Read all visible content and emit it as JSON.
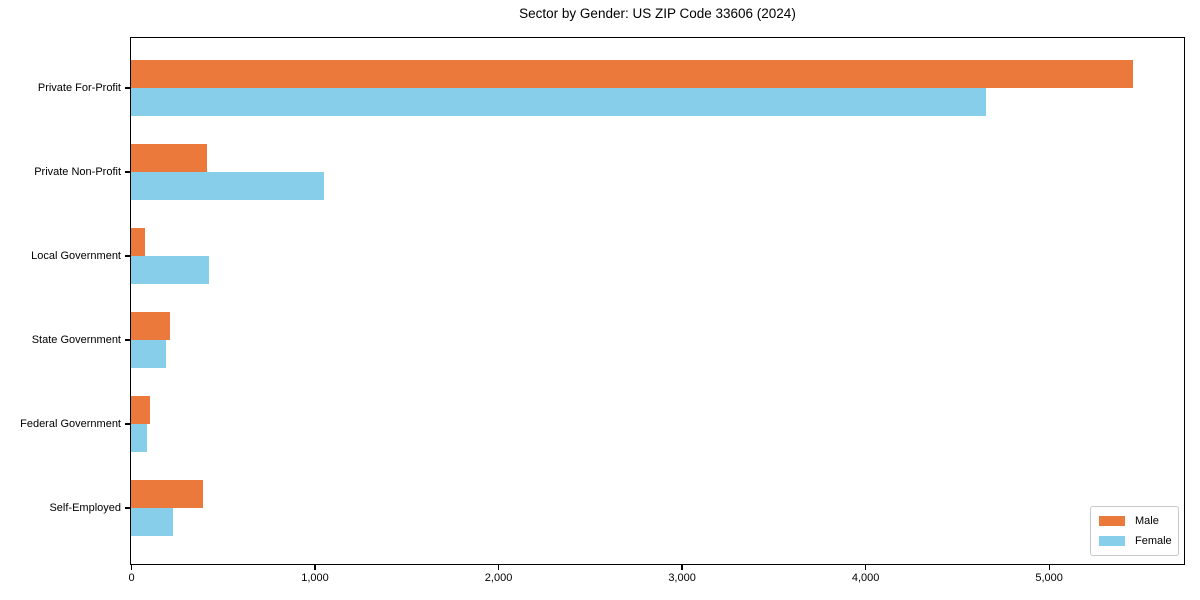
{
  "chart_data": {
    "type": "bar",
    "orientation": "horizontal",
    "title": "Sector by Gender: US ZIP Code 33606 (2024)",
    "categories": [
      "Private For-Profit",
      "Private Non-Profit",
      "Local Government",
      "State Government",
      "Federal Government",
      "Self-Employed"
    ],
    "series": [
      {
        "name": "Male",
        "color": "#ec793c",
        "values": [
          5459,
          413,
          74,
          210,
          105,
          391
        ]
      },
      {
        "name": "Female",
        "color": "#87ceeb",
        "values": [
          4660,
          1051,
          427,
          193,
          87,
          228
        ]
      }
    ],
    "xlim": [
      0,
      5732
    ],
    "x_ticks": [
      0,
      1000,
      2000,
      3000,
      4000,
      5000
    ],
    "x_tick_labels": [
      "0",
      "1,000",
      "2,000",
      "3,000",
      "4,000",
      "5,000"
    ],
    "xlabel": "",
    "ylabel": "",
    "grid": false,
    "legend_position": "lower right",
    "plot_background": "#ffffff",
    "axis_border_color": "#000000"
  }
}
